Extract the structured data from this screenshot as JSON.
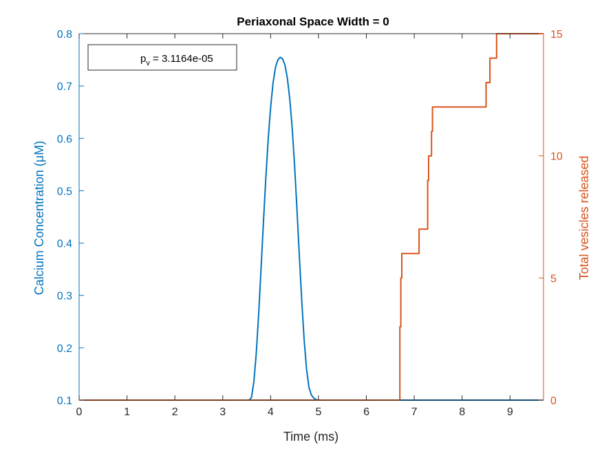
{
  "chart_data": {
    "type": "line",
    "title": "Periaxonal Space Width = 0",
    "xlabel": "Time (ms)",
    "ylabel_left": "Calcium Concentration (μM)",
    "ylabel_right": "Total vesicles released",
    "xlim": [
      0,
      9.7
    ],
    "ylim_left": [
      0.1,
      0.8
    ],
    "ylim_right": [
      0,
      15
    ],
    "xticks": [
      "0",
      "1",
      "2",
      "3",
      "4",
      "5",
      "6",
      "7",
      "8",
      "9"
    ],
    "yticks_left": [
      "0.1",
      "0.2",
      "0.3",
      "0.4",
      "0.5",
      "0.6",
      "0.7",
      "0.8"
    ],
    "yticks_right": [
      "0",
      "5",
      "10",
      "15"
    ],
    "grid": false,
    "legend": {
      "position": "top-left",
      "label": "p",
      "subscript": "v",
      "value_text": " = 3.1164e-05"
    },
    "colors": {
      "left": "#0072BD",
      "right": "#D95319",
      "axis": "#262626"
    },
    "series": [
      {
        "name": "Calcium Concentration (μM)",
        "axis": "left",
        "x": [
          0,
          3.55,
          3.6,
          3.65,
          3.7,
          3.75,
          3.8,
          3.85,
          3.9,
          3.95,
          4.0,
          4.05,
          4.1,
          4.15,
          4.2,
          4.25,
          4.3,
          4.35,
          4.4,
          4.45,
          4.5,
          4.55,
          4.6,
          4.65,
          4.7,
          4.75,
          4.8,
          4.85,
          4.9,
          4.95,
          5.0,
          5.05,
          9.7
        ],
        "y": [
          0.1,
          0.1,
          0.105,
          0.135,
          0.19,
          0.265,
          0.35,
          0.44,
          0.525,
          0.6,
          0.66,
          0.705,
          0.735,
          0.75,
          0.755,
          0.752,
          0.74,
          0.715,
          0.675,
          0.62,
          0.55,
          0.465,
          0.375,
          0.29,
          0.215,
          0.16,
          0.125,
          0.11,
          0.104,
          0.101,
          0.1,
          0.1,
          0.1
        ]
      },
      {
        "name": "Total vesicles released",
        "axis": "right",
        "step": true,
        "x": [
          0,
          6.7,
          6.72,
          6.74,
          6.76,
          7.1,
          7.28,
          7.3,
          7.36,
          7.38,
          8.5,
          8.58,
          8.72,
          9.7
        ],
        "y": [
          0,
          3,
          5,
          6,
          6,
          7,
          9,
          10,
          11,
          12,
          13,
          14,
          15,
          15
        ]
      }
    ]
  }
}
